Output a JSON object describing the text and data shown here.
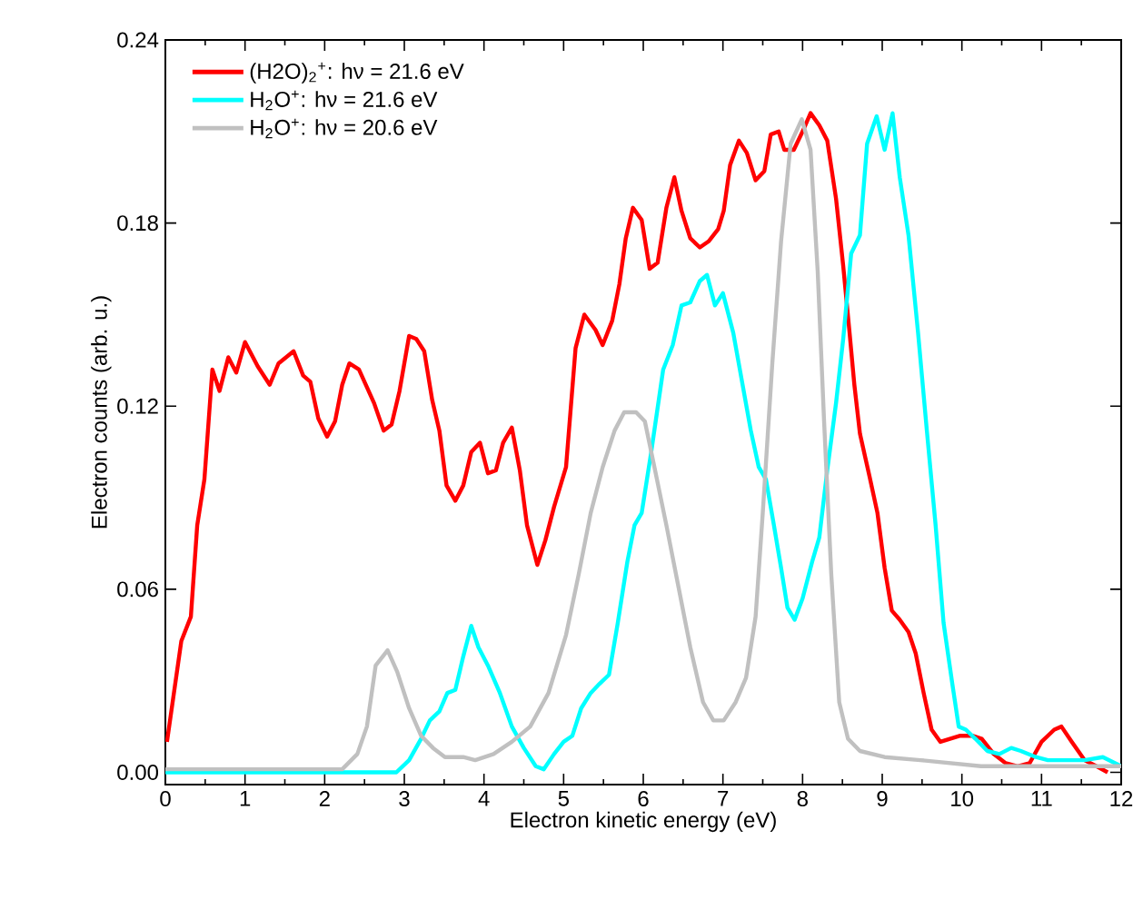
{
  "chart_data": {
    "type": "line",
    "xlabel": "Electron kinetic energy (eV)",
    "ylabel": "Electron counts (arb. u.)",
    "xlim": [
      0,
      12
    ],
    "ylim": [
      -0.004,
      0.24
    ],
    "xticks": [
      0,
      1,
      2,
      3,
      4,
      5,
      6,
      7,
      8,
      9,
      10,
      11,
      12
    ],
    "yticks": [
      {
        "value": 0,
        "label": "0.00"
      },
      {
        "value": 0.06,
        "label": "0.06"
      },
      {
        "value": 0.12,
        "label": "0.12"
      },
      {
        "value": 0.18,
        "label": "0.18"
      },
      {
        "value": 0.24,
        "label": "0.24"
      }
    ],
    "legend": "top left",
    "grid": false,
    "line_style": "solid",
    "series": [
      {
        "name": "(H2O)$_{2}$$^{+}$: hν = 21.6 eV",
        "color": "#ff0000",
        "x": [
          0.02,
          0.2,
          0.32,
          0.4,
          0.49,
          0.59,
          0.68,
          0.79,
          0.89,
          1.0,
          1.16,
          1.31,
          1.42,
          1.61,
          1.73,
          1.82,
          1.92,
          2.03,
          2.13,
          2.22,
          2.31,
          2.43,
          2.62,
          2.74,
          2.84,
          2.94,
          3.06,
          3.15,
          3.25,
          3.35,
          3.44,
          3.53,
          3.64,
          3.74,
          3.84,
          3.95,
          4.05,
          4.15,
          4.24,
          4.35,
          4.45,
          4.54,
          4.67,
          4.77,
          4.88,
          5.03,
          5.15,
          5.26,
          5.4,
          5.49,
          5.61,
          5.7,
          5.78,
          5.87,
          5.98,
          6.08,
          6.18,
          6.29,
          6.39,
          6.48,
          6.59,
          6.71,
          6.82,
          6.94,
          7.01,
          7.09,
          7.2,
          7.3,
          7.41,
          7.52,
          7.6,
          7.7,
          7.77,
          7.89,
          8.0,
          8.1,
          8.21,
          8.31,
          8.42,
          8.51,
          8.59,
          8.65,
          8.72,
          8.84,
          8.94,
          9.03,
          9.12,
          9.22,
          9.33,
          9.42,
          9.52,
          9.62,
          9.73,
          9.85,
          9.98,
          10.13,
          10.25,
          10.4,
          10.55,
          10.7,
          10.85,
          11.0,
          11.16,
          11.25,
          11.38,
          11.54,
          11.69,
          11.83
        ],
        "values": [
          0.01,
          0.043,
          0.051,
          0.081,
          0.096,
          0.132,
          0.125,
          0.136,
          0.131,
          0.141,
          0.133,
          0.127,
          0.134,
          0.138,
          0.13,
          0.128,
          0.116,
          0.11,
          0.115,
          0.127,
          0.134,
          0.132,
          0.121,
          0.112,
          0.114,
          0.125,
          0.143,
          0.142,
          0.138,
          0.122,
          0.112,
          0.094,
          0.089,
          0.094,
          0.105,
          0.108,
          0.098,
          0.099,
          0.108,
          0.113,
          0.099,
          0.081,
          0.068,
          0.076,
          0.087,
          0.1,
          0.139,
          0.15,
          0.145,
          0.14,
          0.148,
          0.16,
          0.175,
          0.185,
          0.181,
          0.165,
          0.167,
          0.185,
          0.195,
          0.184,
          0.175,
          0.172,
          0.174,
          0.178,
          0.184,
          0.199,
          0.207,
          0.203,
          0.194,
          0.197,
          0.209,
          0.21,
          0.204,
          0.204,
          0.21,
          0.216,
          0.212,
          0.207,
          0.188,
          0.166,
          0.144,
          0.127,
          0.111,
          0.097,
          0.085,
          0.067,
          0.053,
          0.05,
          0.046,
          0.039,
          0.026,
          0.014,
          0.01,
          0.011,
          0.012,
          0.012,
          0.011,
          0.006,
          0.003,
          0.002,
          0.003,
          0.01,
          0.014,
          0.015,
          0.01,
          0.004,
          0.002,
          0.0
        ]
      },
      {
        "name": "H$_{2}$O$^{+}$: hν = 21.6 eV",
        "color": "#00ffff",
        "x": [
          0,
          2.9,
          3.06,
          3.21,
          3.32,
          3.44,
          3.54,
          3.64,
          3.74,
          3.84,
          3.93,
          4.05,
          4.2,
          4.35,
          4.5,
          4.65,
          4.75,
          4.88,
          5.0,
          5.11,
          5.22,
          5.34,
          5.45,
          5.57,
          5.68,
          5.8,
          5.89,
          5.98,
          6.1,
          6.25,
          6.37,
          6.48,
          6.59,
          6.71,
          6.8,
          6.9,
          7.0,
          7.13,
          7.24,
          7.35,
          7.45,
          7.54,
          7.64,
          7.73,
          7.81,
          7.9,
          8.0,
          8.12,
          8.21,
          8.31,
          8.42,
          8.51,
          8.61,
          8.72,
          8.81,
          8.93,
          9.03,
          9.13,
          9.22,
          9.33,
          9.45,
          9.56,
          9.67,
          9.77,
          9.88,
          9.96,
          10.05,
          10.17,
          10.32,
          10.47,
          10.62,
          10.74,
          10.93,
          11.08,
          11.31,
          11.54,
          11.77,
          12.0
        ],
        "values": [
          0,
          0,
          0.004,
          0.011,
          0.017,
          0.02,
          0.026,
          0.027,
          0.038,
          0.048,
          0.041,
          0.035,
          0.026,
          0.015,
          0.008,
          0.002,
          0.001,
          0.006,
          0.01,
          0.012,
          0.021,
          0.026,
          0.029,
          0.032,
          0.049,
          0.069,
          0.081,
          0.085,
          0.105,
          0.132,
          0.14,
          0.153,
          0.154,
          0.161,
          0.163,
          0.153,
          0.157,
          0.144,
          0.128,
          0.112,
          0.1,
          0.096,
          0.081,
          0.067,
          0.054,
          0.05,
          0.057,
          0.069,
          0.077,
          0.099,
          0.121,
          0.142,
          0.17,
          0.176,
          0.206,
          0.215,
          0.204,
          0.216,
          0.195,
          0.176,
          0.144,
          0.112,
          0.081,
          0.049,
          0.029,
          0.015,
          0.014,
          0.011,
          0.007,
          0.006,
          0.008,
          0.007,
          0.005,
          0.004,
          0.004,
          0.004,
          0.005,
          0.002
        ]
      },
      {
        "name": "H$_{2}$O$^{+}$: hν = 20.6 eV",
        "color": "#c0c0c0",
        "x": [
          0,
          2.22,
          2.41,
          2.53,
          2.64,
          2.79,
          2.91,
          3.06,
          3.21,
          3.36,
          3.51,
          3.74,
          3.89,
          4.12,
          4.35,
          4.58,
          4.81,
          5.03,
          5.19,
          5.34,
          5.49,
          5.64,
          5.76,
          5.91,
          6.02,
          6.14,
          6.29,
          6.44,
          6.59,
          6.75,
          6.88,
          7.01,
          7.16,
          7.29,
          7.41,
          7.5,
          7.62,
          7.73,
          7.85,
          7.99,
          8.1,
          8.19,
          8.27,
          8.36,
          8.46,
          8.57,
          8.72,
          9.03,
          9.48,
          10.24,
          11.0,
          12.0
        ],
        "values": [
          0.001,
          0.001,
          0.006,
          0.015,
          0.035,
          0.04,
          0.033,
          0.021,
          0.012,
          0.008,
          0.005,
          0.005,
          0.004,
          0.006,
          0.01,
          0.015,
          0.026,
          0.045,
          0.065,
          0.085,
          0.1,
          0.112,
          0.118,
          0.118,
          0.115,
          0.1,
          0.081,
          0.061,
          0.041,
          0.023,
          0.017,
          0.017,
          0.023,
          0.031,
          0.051,
          0.085,
          0.134,
          0.174,
          0.206,
          0.214,
          0.204,
          0.164,
          0.115,
          0.065,
          0.023,
          0.011,
          0.007,
          0.005,
          0.004,
          0.002,
          0.002,
          0.002
        ]
      }
    ]
  }
}
